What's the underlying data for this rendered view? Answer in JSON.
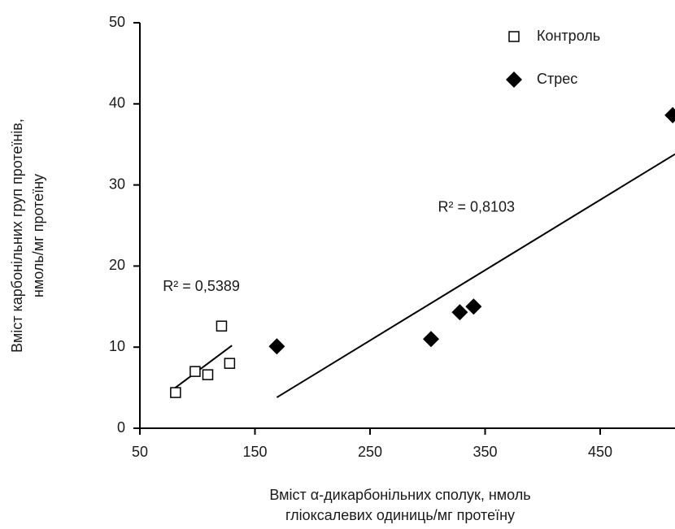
{
  "chart_data": {
    "type": "scatter",
    "xlabel": [
      "Вміст α-дикарбонільних сполук, нмоль",
      "гліоксалевих одиниць/мг протеїну"
    ],
    "ylabel": [
      "Вміст карбонільних груп протеїнів,",
      "нмоль/мг протеїну"
    ],
    "xlim": [
      50,
      515
    ],
    "ylim": [
      0,
      50
    ],
    "xticks": [
      50,
      150,
      250,
      350,
      450
    ],
    "yticks": [
      0,
      10,
      20,
      30,
      40,
      50
    ],
    "legend": "top-right",
    "series": [
      {
        "name": "Контроль",
        "marker": "square",
        "color": "#000000",
        "x": [
          81,
          98,
          109,
          121,
          128
        ],
        "values": [
          4.4,
          7.0,
          6.6,
          12.6,
          8.0
        ],
        "trendline": {
          "x": [
            78,
            130
          ],
          "y": [
            4.7,
            10.2
          ]
        },
        "annotation": {
          "text": "R² = 0,5389",
          "x": 70,
          "y": 17.4
        }
      },
      {
        "name": "Стрес",
        "marker": "diamond",
        "color": "#000000",
        "x": [
          169,
          303,
          328,
          340,
          513
        ],
        "values": [
          10.1,
          11.0,
          14.3,
          15.0,
          38.6
        ],
        "trendline": {
          "x": [
            169,
            515
          ],
          "y": [
            3.8,
            33.8
          ]
        },
        "annotation": {
          "text": "R² = 0,8103",
          "x": 309,
          "y": 27.2
        }
      }
    ]
  }
}
